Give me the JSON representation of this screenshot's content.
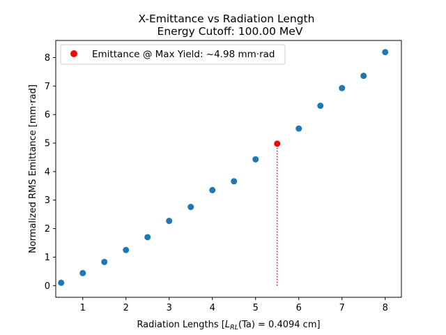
{
  "chart_data": {
    "type": "scatter",
    "title": "X-Emittance vs Radiation Length",
    "subtitle": "Energy Cutoff: 100.00 MeV",
    "xlabel_prefix": "Radiation Lengths [",
    "xlabel_math_L": "L",
    "xlabel_math_sub": "RL",
    "xlabel_math_rest": "(Ta) = 0.4094",
    "xlabel_suffix": " cm]",
    "ylabel": "Normalized RMS Emittance [mm·rad]",
    "xlim": [
      0.375,
      8.375
    ],
    "ylim": [
      -0.41,
      8.6
    ],
    "xticks": [
      1,
      2,
      3,
      4,
      5,
      6,
      7,
      8
    ],
    "yticks": [
      0,
      1,
      2,
      3,
      4,
      5,
      6,
      7,
      8
    ],
    "grid": false,
    "legend_position": "top-left",
    "series": [
      {
        "color": "#1f77b4",
        "x": [
          0.5,
          1.0,
          1.5,
          2.0,
          2.5,
          3.0,
          3.5,
          4.0,
          4.5,
          5.0,
          6.0,
          6.5,
          7.0,
          7.5,
          8.0
        ],
        "y": [
          0.1,
          0.44,
          0.83,
          1.25,
          1.7,
          2.27,
          2.76,
          3.35,
          3.66,
          4.43,
          5.51,
          6.31,
          6.93,
          7.36,
          8.19
        ]
      },
      {
        "name": "Emittance @ Max Yield: ~4.98 mm·rad",
        "color": "#ff0000",
        "x": [
          5.5
        ],
        "y": [
          4.98
        ]
      }
    ],
    "marker_line": {
      "x": 5.5,
      "y_from": 0,
      "y_to": 4.98,
      "color": "#ff0000",
      "style": "dotted"
    }
  }
}
